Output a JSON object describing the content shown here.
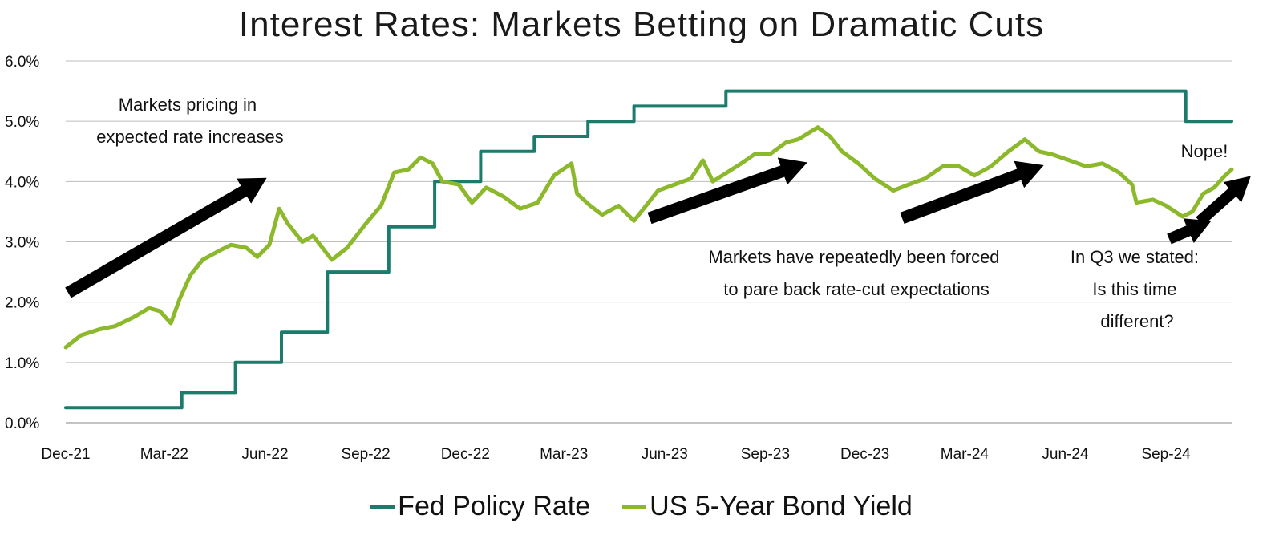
{
  "chart_data": {
    "type": "line",
    "title": "Interest Rates: Markets Betting on Dramatic Cuts",
    "xlabel": "",
    "ylabel": "",
    "x_range": [
      "2021-12-01",
      "2024-10-31"
    ],
    "ylim": [
      0,
      6
    ],
    "y_ticks": [
      "0.0%",
      "1.0%",
      "2.0%",
      "3.0%",
      "4.0%",
      "5.0%",
      "6.0%"
    ],
    "x_ticks": [
      "Dec-21",
      "Mar-22",
      "Jun-22",
      "Sep-22",
      "Dec-22",
      "Mar-23",
      "Jun-23",
      "Sep-23",
      "Dec-23",
      "Mar-24",
      "Jun-24",
      "Sep-24"
    ],
    "grid": "horizontal",
    "legend_position": "bottom",
    "series": [
      {
        "name": "Fed Policy Rate",
        "color": "#1b7c6c",
        "step": true,
        "points": [
          [
            "2021-12-01",
            0.25
          ],
          [
            "2022-03-17",
            0.5
          ],
          [
            "2022-05-05",
            1.0
          ],
          [
            "2022-06-16",
            1.5
          ],
          [
            "2022-07-28",
            2.5
          ],
          [
            "2022-09-22",
            3.25
          ],
          [
            "2022-11-03",
            4.0
          ],
          [
            "2022-12-15",
            4.5
          ],
          [
            "2023-02-02",
            4.75
          ],
          [
            "2023-03-23",
            5.0
          ],
          [
            "2023-05-04",
            5.25
          ],
          [
            "2023-07-27",
            5.5
          ],
          [
            "2024-09-19",
            5.0
          ],
          [
            "2024-10-31",
            5.0
          ]
        ]
      },
      {
        "name": "US 5-Year Bond Yield",
        "color": "#8cb82b",
        "step": false,
        "points": [
          [
            "2021-12-01",
            1.25
          ],
          [
            "2021-12-15",
            1.45
          ],
          [
            "2022-01-01",
            1.55
          ],
          [
            "2022-01-15",
            1.6
          ],
          [
            "2022-02-01",
            1.75
          ],
          [
            "2022-02-15",
            1.9
          ],
          [
            "2022-02-25",
            1.85
          ],
          [
            "2022-03-07",
            1.65
          ],
          [
            "2022-03-15",
            2.05
          ],
          [
            "2022-03-25",
            2.45
          ],
          [
            "2022-04-05",
            2.7
          ],
          [
            "2022-04-20",
            2.85
          ],
          [
            "2022-05-01",
            2.95
          ],
          [
            "2022-05-15",
            2.9
          ],
          [
            "2022-05-25",
            2.75
          ],
          [
            "2022-06-05",
            2.95
          ],
          [
            "2022-06-14",
            3.55
          ],
          [
            "2022-06-22",
            3.3
          ],
          [
            "2022-07-05",
            3.0
          ],
          [
            "2022-07-15",
            3.1
          ],
          [
            "2022-08-01",
            2.7
          ],
          [
            "2022-08-15",
            2.9
          ],
          [
            "2022-09-01",
            3.3
          ],
          [
            "2022-09-15",
            3.6
          ],
          [
            "2022-09-27",
            4.15
          ],
          [
            "2022-10-10",
            4.2
          ],
          [
            "2022-10-21",
            4.4
          ],
          [
            "2022-11-01",
            4.3
          ],
          [
            "2022-11-10",
            4.0
          ],
          [
            "2022-11-25",
            3.95
          ],
          [
            "2022-12-07",
            3.65
          ],
          [
            "2022-12-20",
            3.9
          ],
          [
            "2023-01-05",
            3.75
          ],
          [
            "2023-01-20",
            3.55
          ],
          [
            "2023-02-05",
            3.65
          ],
          [
            "2023-02-20",
            4.1
          ],
          [
            "2023-03-08",
            4.3
          ],
          [
            "2023-03-13",
            3.8
          ],
          [
            "2023-03-25",
            3.6
          ],
          [
            "2023-04-05",
            3.45
          ],
          [
            "2023-04-20",
            3.6
          ],
          [
            "2023-05-04",
            3.35
          ],
          [
            "2023-05-15",
            3.6
          ],
          [
            "2023-05-26",
            3.85
          ],
          [
            "2023-06-10",
            3.95
          ],
          [
            "2023-06-25",
            4.05
          ],
          [
            "2023-07-06",
            4.35
          ],
          [
            "2023-07-15",
            4.0
          ],
          [
            "2023-07-28",
            4.15
          ],
          [
            "2023-08-10",
            4.3
          ],
          [
            "2023-08-22",
            4.45
          ],
          [
            "2023-09-05",
            4.45
          ],
          [
            "2023-09-20",
            4.65
          ],
          [
            "2023-10-01",
            4.7
          ],
          [
            "2023-10-19",
            4.9
          ],
          [
            "2023-10-30",
            4.75
          ],
          [
            "2023-11-10",
            4.5
          ],
          [
            "2023-11-25",
            4.3
          ],
          [
            "2023-12-10",
            4.05
          ],
          [
            "2023-12-27",
            3.85
          ],
          [
            "2024-01-10",
            3.95
          ],
          [
            "2024-01-25",
            4.05
          ],
          [
            "2024-02-10",
            4.25
          ],
          [
            "2024-02-25",
            4.25
          ],
          [
            "2024-03-10",
            4.1
          ],
          [
            "2024-03-25",
            4.25
          ],
          [
            "2024-04-10",
            4.5
          ],
          [
            "2024-04-25",
            4.7
          ],
          [
            "2024-05-08",
            4.5
          ],
          [
            "2024-05-20",
            4.45
          ],
          [
            "2024-06-05",
            4.35
          ],
          [
            "2024-06-20",
            4.25
          ],
          [
            "2024-07-05",
            4.3
          ],
          [
            "2024-07-20",
            4.15
          ],
          [
            "2024-08-01",
            3.95
          ],
          [
            "2024-08-05",
            3.65
          ],
          [
            "2024-08-20",
            3.7
          ],
          [
            "2024-09-01",
            3.6
          ],
          [
            "2024-09-16",
            3.42
          ],
          [
            "2024-09-25",
            3.5
          ],
          [
            "2024-10-05",
            3.8
          ],
          [
            "2024-10-15",
            3.9
          ],
          [
            "2024-10-25",
            4.1
          ],
          [
            "2024-10-31",
            4.2
          ]
        ]
      }
    ],
    "annotations": [
      {
        "lines": [
          "Markets pricing in",
          "expected rate increases"
        ]
      },
      {
        "lines": [
          "Markets have repeatedly been forced",
          "to pare back rate-cut expectations"
        ]
      },
      {
        "lines": [
          "In Q3 we stated:",
          "Is this time",
          "different?"
        ]
      },
      {
        "lines": [
          "Nope!"
        ]
      }
    ]
  }
}
